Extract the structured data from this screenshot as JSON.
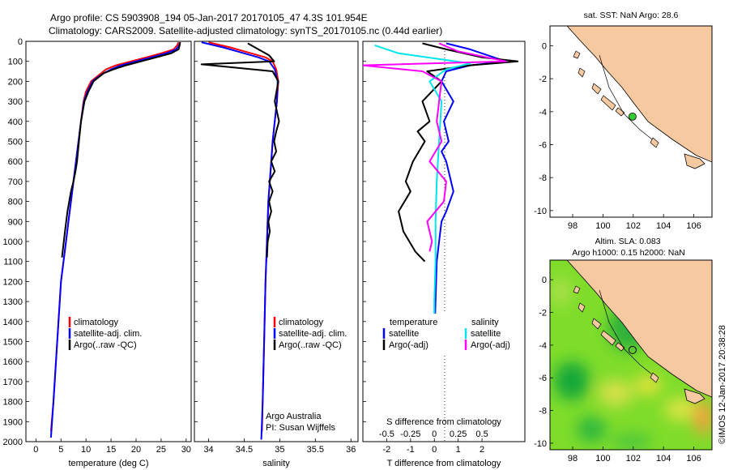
{
  "header": {
    "title_line1": "Argo profile: CS 5903908_194 05-Jan-2017 20170105_47 4.3S 101.954E",
    "title_line2": "Climatology: CARS2009. Satellite-adjusted climatology: synTS_20170105.nc (0.44d earlier)"
  },
  "colors": {
    "climatology": "#ff0000",
    "satellite": "#0000ff",
    "argo": "#000000",
    "sal_satellite": "#00e5ee",
    "sal_argo": "#ff00ff",
    "land": "#f7c9a0",
    "float": "#33cc33"
  },
  "depth_axis": {
    "ticks": [
      "0",
      "100",
      "200",
      "300",
      "400",
      "500",
      "600",
      "700",
      "800",
      "900",
      "1000",
      "1100",
      "1200",
      "1300",
      "1400",
      "1500",
      "1600",
      "1700",
      "1800",
      "1900",
      "2000"
    ],
    "range": [
      0,
      2000
    ]
  },
  "chart_data": [
    {
      "type": "line",
      "name": "temperature-profile",
      "xlabel": "temperature (deg C)",
      "xlim": [
        -2,
        31
      ],
      "xticks": [
        "0",
        "5",
        "10",
        "15",
        "20",
        "25",
        "30"
      ],
      "ylim": [
        0,
        2000
      ],
      "legend": [
        "climatology",
        "satellite-adj. clim.",
        "Argo(..raw -QC)"
      ],
      "series": [
        {
          "name": "climatology",
          "color": "red",
          "x": [
            28.5,
            28.2,
            27.5,
            25,
            22,
            19,
            16,
            14,
            13,
            12,
            11,
            10,
            9.5,
            9,
            8.5,
            8,
            7.5,
            7,
            6.5,
            6,
            5.5,
            5,
            4.5,
            4,
            3.5,
            3
          ],
          "y": [
            5,
            20,
            40,
            60,
            80,
            100,
            120,
            140,
            160,
            180,
            200,
            250,
            300,
            400,
            500,
            600,
            700,
            800,
            900,
            1000,
            1100,
            1200,
            1400,
            1600,
            1800,
            1950
          ]
        },
        {
          "name": "satellite-adj. clim.",
          "color": "blue",
          "x": [
            28.8,
            28.6,
            28,
            26,
            23,
            20,
            17,
            15,
            13.5,
            12.3,
            11.3,
            10.3,
            9.6,
            9,
            8.5,
            8,
            7.5,
            7,
            6.5,
            6,
            5.5,
            5,
            4.5,
            4,
            3.5,
            3
          ],
          "y": [
            5,
            20,
            40,
            60,
            80,
            100,
            120,
            140,
            160,
            180,
            200,
            250,
            300,
            400,
            500,
            600,
            700,
            800,
            900,
            1000,
            1100,
            1200,
            1400,
            1600,
            1800,
            1980
          ]
        },
        {
          "name": "Argo",
          "color": "black",
          "x": [
            28.8,
            28.7,
            28.5,
            27,
            24,
            21,
            18,
            15.5,
            13.5,
            12.5,
            11.5,
            10.5,
            9.7,
            9,
            8.6,
            8.2,
            7.9,
            7.5,
            7,
            6.3,
            5.8,
            5.2
          ],
          "y": [
            5,
            20,
            40,
            60,
            80,
            100,
            120,
            140,
            160,
            180,
            200,
            250,
            300,
            400,
            500,
            600,
            650,
            700,
            750,
            850,
            950,
            1080
          ]
        }
      ]
    },
    {
      "type": "line",
      "name": "salinity-profile",
      "xlabel": "salinity",
      "xlim": [
        33.8,
        36.1
      ],
      "xticks": [
        "34",
        "34.5",
        "35",
        "35.5",
        "36"
      ],
      "ylim": [
        0,
        2000
      ],
      "legend": [
        "climatology",
        "satellite-adj. clim.",
        "Argo(..raw -QC)"
      ],
      "annotations": [
        "Argo Australia",
        "PI: Susan Wijffels"
      ],
      "series": [
        {
          "name": "climatology",
          "color": "red",
          "x": [
            34.0,
            34.3,
            34.6,
            34.8,
            34.9,
            34.95,
            34.98,
            34.96,
            34.93,
            34.9,
            34.88,
            34.86,
            34.84,
            34.82,
            34.8,
            34.78,
            34.76,
            34.75
          ],
          "y": [
            5,
            30,
            60,
            80,
            100,
            140,
            200,
            300,
            400,
            500,
            600,
            700,
            800,
            1000,
            1200,
            1500,
            1800,
            1950
          ]
        },
        {
          "name": "satellite-adj. clim.",
          "color": "blue",
          "x": [
            33.9,
            34.2,
            34.5,
            34.7,
            34.85,
            34.93,
            34.97,
            34.96,
            34.93,
            34.9,
            34.88,
            34.86,
            34.84,
            34.82,
            34.8,
            34.78,
            34.76,
            34.74
          ],
          "y": [
            5,
            30,
            60,
            80,
            100,
            140,
            200,
            300,
            400,
            500,
            600,
            700,
            800,
            1000,
            1200,
            1500,
            1800,
            1990
          ]
        },
        {
          "name": "Argo",
          "color": "black",
          "x": [
            34.55,
            34.7,
            34.85,
            34.92,
            33.9,
            34.9,
            34.98,
            34.93,
            34.99,
            34.95,
            34.92,
            34.95,
            34.88,
            34.93,
            34.85,
            34.9,
            34.85,
            34.88,
            34.84,
            34.86,
            34.83,
            34.82
          ],
          "y": [
            10,
            40,
            70,
            100,
            115,
            150,
            200,
            300,
            400,
            450,
            500,
            550,
            600,
            650,
            700,
            750,
            800,
            850,
            900,
            950,
            1000,
            1080
          ]
        }
      ]
    },
    {
      "type": "line",
      "name": "difference-profile",
      "xlabel_bottom": "T difference from climatology",
      "xlabel_top": "S difference from climatology",
      "t_xlim": [
        -3,
        3.8
      ],
      "t_xticks": [
        "-2",
        "-1",
        "0",
        "1",
        "2"
      ],
      "s_xticks": [
        "-0.5",
        "-0.25",
        "0",
        "0.25",
        "0.5"
      ],
      "ylim": [
        0,
        2000
      ],
      "legend_titles": [
        "temperature",
        "salinity"
      ],
      "legend": [
        "satellite",
        "Argo(-adj)",
        "satellite",
        "Argo(-adj)"
      ],
      "series": [
        {
          "name": "temperature satellite",
          "color": "blue",
          "x": [
            0.5,
            1.5,
            2.5,
            3,
            1.5,
            0.5,
            0.3,
            0.8,
            0.4,
            0.6,
            0.3,
            0.5,
            0.6,
            0.8,
            0.5,
            0.3,
            0.2,
            0.1,
            0.05,
            0
          ],
          "y": [
            10,
            40,
            80,
            100,
            120,
            150,
            200,
            300,
            400,
            500,
            550,
            600,
            650,
            750,
            850,
            900,
            1000,
            1100,
            1300,
            1500
          ]
        },
        {
          "name": "temperature Argo",
          "color": "black",
          "x": [
            -0.5,
            0.5,
            2,
            3.5,
            1.5,
            -0.3,
            0.3,
            -0.5,
            -0.2,
            -0.7,
            -0.4,
            -0.9,
            -1.2,
            -1.0,
            -1.5,
            -1.3,
            -0.8,
            -0.4
          ],
          "y": [
            10,
            40,
            80,
            100,
            120,
            150,
            200,
            300,
            400,
            450,
            500,
            600,
            700,
            750,
            850,
            950,
            1050,
            1100
          ]
        },
        {
          "name": "salinity satellite",
          "color": "cyan",
          "x": [
            -2.5,
            -1.5,
            0.3,
            1.5,
            0.5,
            -0.2,
            0.3,
            0.2,
            0.1,
            0.05,
            0.05,
            0,
            0,
            0
          ],
          "y": [
            20,
            60,
            90,
            110,
            140,
            200,
            300,
            500,
            700,
            900,
            1100,
            1300,
            1500,
            1500
          ]
        },
        {
          "name": "salinity Argo",
          "color": "magenta",
          "x": [
            0.2,
            1,
            3,
            -3,
            -0.5,
            0.3,
            0.2,
            0.1,
            0.3,
            -0.2,
            0.5,
            0.4,
            -0.3,
            -0.1,
            -0.2
          ],
          "y": [
            10,
            50,
            100,
            120,
            150,
            200,
            300,
            400,
            500,
            600,
            700,
            800,
            900,
            1000,
            1050
          ]
        }
      ]
    },
    {
      "type": "heatmap",
      "name": "sst-map",
      "title": "sat. SST: NaN Argo: 28.6",
      "xlim": [
        96.5,
        107.2
      ],
      "ylim": [
        -10.4,
        1.2
      ],
      "xticks": [
        "98",
        "100",
        "102",
        "104",
        "106"
      ],
      "yticks": [
        "0",
        "-2",
        "-4",
        "-6",
        "-8",
        "-10"
      ],
      "float_position": {
        "lon": 101.954,
        "lat": -4.3
      }
    },
    {
      "type": "heatmap",
      "name": "sla-map",
      "title_line1": "Altim. SLA: 0.083",
      "title_line2": "Argo h1000: 0.15 h2000: NaN",
      "xlim": [
        96.5,
        107.2
      ],
      "ylim": [
        -10.4,
        1.2
      ],
      "xticks": [
        "98",
        "100",
        "102",
        "104",
        "106"
      ],
      "yticks": [
        "0",
        "-2",
        "-4",
        "-6",
        "-8",
        "-10"
      ],
      "float_position": {
        "lon": 101.954,
        "lat": -4.3
      }
    }
  ],
  "footer": {
    "credit": "©IMOS 12-Jan-2017 20:38:28"
  }
}
